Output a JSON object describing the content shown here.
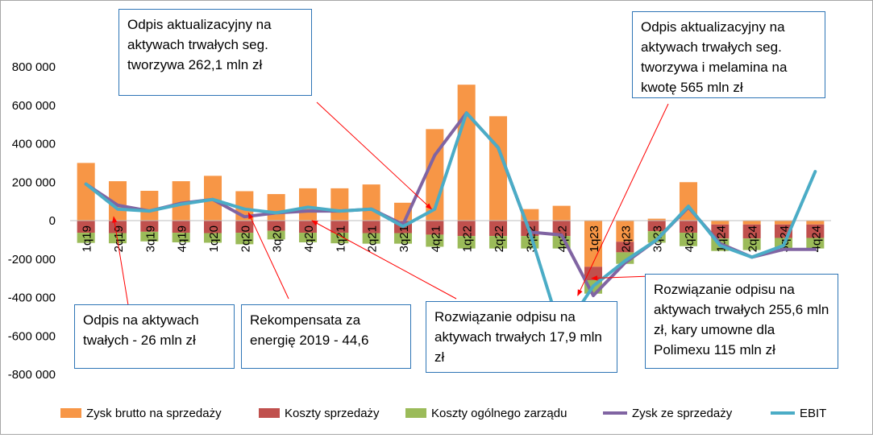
{
  "chart_data": {
    "type": "bar",
    "subtype": "stacked bars with line overlays",
    "categories": [
      "1q19",
      "2q19",
      "3q19",
      "4q19",
      "1q20",
      "2q20",
      "3q20",
      "4q20",
      "1q21",
      "2q21",
      "3q21",
      "4q21",
      "1q22",
      "2q22",
      "3q22",
      "4q22",
      "1q23",
      "2q23",
      "3q23",
      "4q23",
      "1q24",
      "2q24",
      "3q24",
      "4q24"
    ],
    "ylim": [
      -800000,
      800000
    ],
    "yticks": [
      -800000,
      -600000,
      -400000,
      -200000,
      0,
      200000,
      400000,
      600000,
      800000
    ],
    "ytick_labels": [
      "-800 000",
      "-600 000",
      "-400 000",
      "-200 000",
      "0",
      "200 000",
      "400 000",
      "600 000",
      "800 000"
    ],
    "grid": false,
    "legend_position": "bottom",
    "series": [
      {
        "name": "Zysk brutto na sprzedaży",
        "kind": "bar",
        "color": "#f79646",
        "values": [
          300000,
          205000,
          155000,
          205000,
          233000,
          153000,
          138000,
          168000,
          168000,
          188000,
          93000,
          476000,
          707000,
          543000,
          60000,
          77000,
          -240000,
          -110000,
          10000,
          200000,
          -20000,
          -20000,
          -20000,
          -20000
        ]
      },
      {
        "name": "Koszty sprzedaży",
        "kind": "bar",
        "color": "#c0504d",
        "values": [
          -63000,
          -65000,
          -58000,
          -63000,
          -65000,
          -63000,
          -53000,
          -63000,
          -63000,
          -65000,
          -65000,
          -73000,
          -80000,
          -80000,
          -80000,
          -80000,
          -70000,
          -55000,
          -55000,
          -63000,
          -73000,
          -73000,
          -70000,
          -70000
        ]
      },
      {
        "name": "Koszty ogólnego zarządu",
        "kind": "bar",
        "color": "#9bbb59",
        "values": [
          -53000,
          -53000,
          -50000,
          -50000,
          -50000,
          -60000,
          -45000,
          -50000,
          -55000,
          -55000,
          -55000,
          -63000,
          -65000,
          -65000,
          -65000,
          -65000,
          -70000,
          -60000,
          -60000,
          -70000,
          -65000,
          -60000,
          -55000,
          -55000
        ]
      },
      {
        "name": "Zysk ze sprzedaży",
        "kind": "line",
        "color": "#8064a2",
        "values": [
          190000,
          80000,
          50000,
          90000,
          110000,
          20000,
          40000,
          50000,
          50000,
          60000,
          -20000,
          340000,
          560000,
          380000,
          -60000,
          -75000,
          -390000,
          -220000,
          -100000,
          70000,
          -120000,
          -190000,
          -150000,
          -150000
        ]
      },
      {
        "name": "EBIT",
        "kind": "line",
        "color": "#4bacc6",
        "values": [
          190000,
          60000,
          50000,
          85000,
          110000,
          60000,
          40000,
          70000,
          50000,
          60000,
          -30000,
          60000,
          560000,
          380000,
          -60000,
          -590000,
          -340000,
          -210000,
          -100000,
          75000,
          -130000,
          -190000,
          -130000,
          255000
        ]
      }
    ],
    "annotations": [
      {
        "text": "Odpis aktualizacyjny na aktywach trwałych seg. tworzywa 262,1 mln zł"
      },
      {
        "text": "Odpis aktualizacyjny na aktywach trwałych seg. tworzywa i melamina na kwotę 565 mln zł"
      },
      {
        "text": "Odpis na aktywach twałych - 26 mln zł"
      },
      {
        "text": "Rekompensata za energię 2019 - 44,6"
      },
      {
        "text": "Rozwiązanie odpisu na aktywach trwałych 17,9 mln zł"
      },
      {
        "text": "Rozwiązanie odpisu na aktywach trwałych 255,6 mln zł, kary umowne dla Polimexu 115 mln zł"
      }
    ]
  }
}
